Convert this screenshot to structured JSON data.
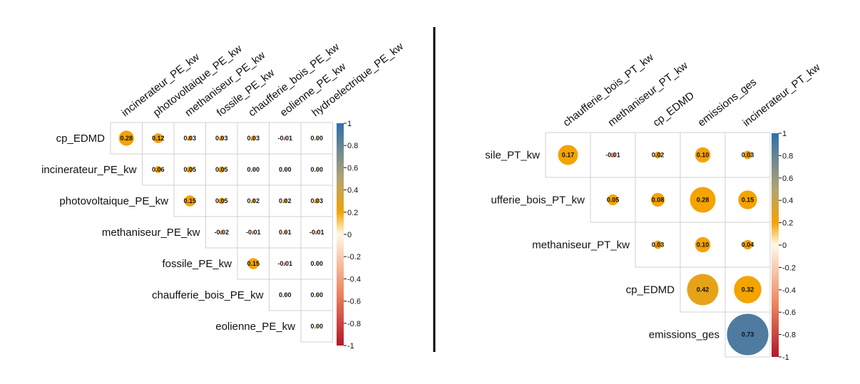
{
  "chart_data": [
    {
      "type": "heatmap",
      "subtype": "correlation-upper-triangle",
      "marker": "circle-size-and-color",
      "rows": [
        "cp_EDMD",
        "incinerateur_PE_kw",
        "photovoltaique_PE_kw",
        "methaniseur_PE_kw",
        "fossile_PE_kw",
        "chaufferie_bois_PE_kw",
        "eolienne_PE_kw"
      ],
      "columns": [
        "incinerateur_PE_kw",
        "photovoltaique_PE_kw",
        "methaniseur_PE_kw",
        "fossile_PE_kw",
        "chaufferie_bois_PE_kw",
        "eolienne_PE_kw",
        "hydroelectrique_PE_kw"
      ],
      "matrix": [
        [
          0.28,
          0.12,
          0.03,
          0.03,
          0.03,
          -0.01,
          0.0
        ],
        [
          null,
          0.06,
          0.05,
          0.05,
          0.0,
          0.0,
          0.0
        ],
        [
          null,
          null,
          0.15,
          0.05,
          0.02,
          0.02,
          0.03
        ],
        [
          null,
          null,
          null,
          -0.02,
          -0.01,
          0.01,
          -0.01
        ],
        [
          null,
          null,
          null,
          null,
          0.15,
          -0.01,
          0.0
        ],
        [
          null,
          null,
          null,
          null,
          null,
          0.0,
          0.0
        ],
        [
          null,
          null,
          null,
          null,
          null,
          null,
          0.0
        ]
      ],
      "value_labels": [
        [
          "0.28",
          "0.12",
          "0.03",
          "0.03",
          "0.03",
          "-0.01",
          "0.00"
        ],
        [
          null,
          "0.06",
          "0.05",
          "0.05",
          "0.00",
          "0.00",
          "0.00"
        ],
        [
          null,
          null,
          "0.15",
          "0.05",
          "0.02",
          "0.02",
          "0.03"
        ],
        [
          null,
          null,
          null,
          "-0.02",
          "-0.01",
          "0.01",
          "-0.01"
        ],
        [
          null,
          null,
          null,
          null,
          "0.15",
          "-0.01",
          "0.00"
        ],
        [
          null,
          null,
          null,
          null,
          null,
          "0.00",
          "0.00"
        ],
        [
          null,
          null,
          null,
          null,
          null,
          null,
          "0.00"
        ]
      ],
      "colorbar": {
        "range": [
          -1,
          1
        ],
        "ticks": [
          "1",
          "0.8",
          "0.6",
          "0.4",
          "0.2",
          "0",
          "-0.2",
          "-0.4",
          "-0.6",
          "-0.8",
          "-1"
        ]
      }
    },
    {
      "type": "heatmap",
      "subtype": "correlation-upper-triangle",
      "marker": "circle-size-and-color",
      "rows": [
        "fossile_PT_kw",
        "chaufferie_bois_PT_kw",
        "methaniseur_PT_kw",
        "cp_EDMD",
        "emissions_ges"
      ],
      "row_labels_visible": [
        "sile_PT_kw",
        "ufferie_bois_PT_kw",
        "methaniseur_PT_kw",
        "cp_EDMD",
        "emissions_ges"
      ],
      "columns": [
        "chaufferie_bois_PT_kw",
        "methaniseur_PT_kw",
        "cp_EDMD",
        "emissions_ges",
        "incinerateur_PT_kw"
      ],
      "matrix": [
        [
          0.17,
          -0.01,
          0.02,
          0.1,
          0.03
        ],
        [
          null,
          0.05,
          0.08,
          0.28,
          0.15
        ],
        [
          null,
          null,
          0.03,
          0.1,
          0.04
        ],
        [
          null,
          null,
          null,
          0.42,
          0.32
        ],
        [
          null,
          null,
          null,
          null,
          0.73
        ]
      ],
      "value_labels": [
        [
          "0.17",
          "-0.01",
          "0.02",
          "0.10",
          "0.03"
        ],
        [
          null,
          "0.05",
          "0.08",
          "0.28",
          "0.15"
        ],
        [
          null,
          null,
          "0.03",
          "0.10",
          "0.04"
        ],
        [
          null,
          null,
          null,
          "0.42",
          "0.32"
        ],
        [
          null,
          null,
          null,
          null,
          "0.73"
        ]
      ],
      "colorbar": {
        "range": [
          -1,
          1
        ],
        "ticks": [
          "1",
          "0.8",
          "0.6",
          "0.4",
          "0.2",
          "0",
          "-0.2",
          "-0.4",
          "-0.6",
          "-0.8",
          "-1"
        ]
      }
    }
  ],
  "colors": {
    "neg_end": "#b2182b",
    "neg_mid": "#ef8a62",
    "zero": "#fff8e8",
    "pos_low": "#f4a300",
    "pos_mid": "#b3a373",
    "pos_end": "#2f6fac",
    "grid": "#d0d0d0",
    "divider": "#000000"
  }
}
